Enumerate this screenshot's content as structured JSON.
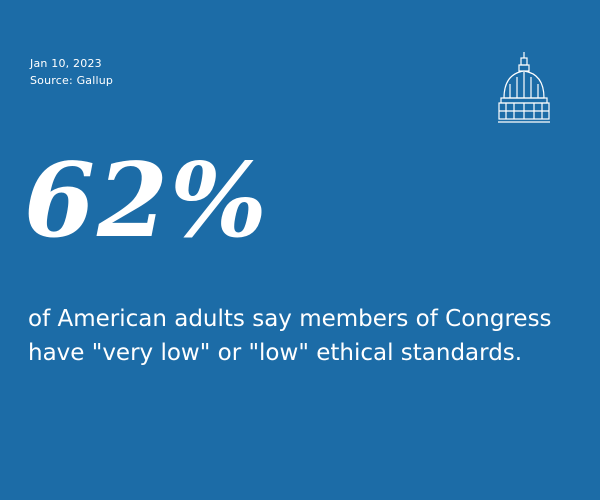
{
  "card": {
    "date": "Jan 10, 2023",
    "source": "Source: Gallup",
    "stat": "62%",
    "statement": "of American adults say members of Congress have \"very low\" or \"low\" ethical standards.",
    "logo_icon": "capitol-dome-icon",
    "colors": {
      "background": "#1c6ca7",
      "text": "#ffffff"
    }
  }
}
